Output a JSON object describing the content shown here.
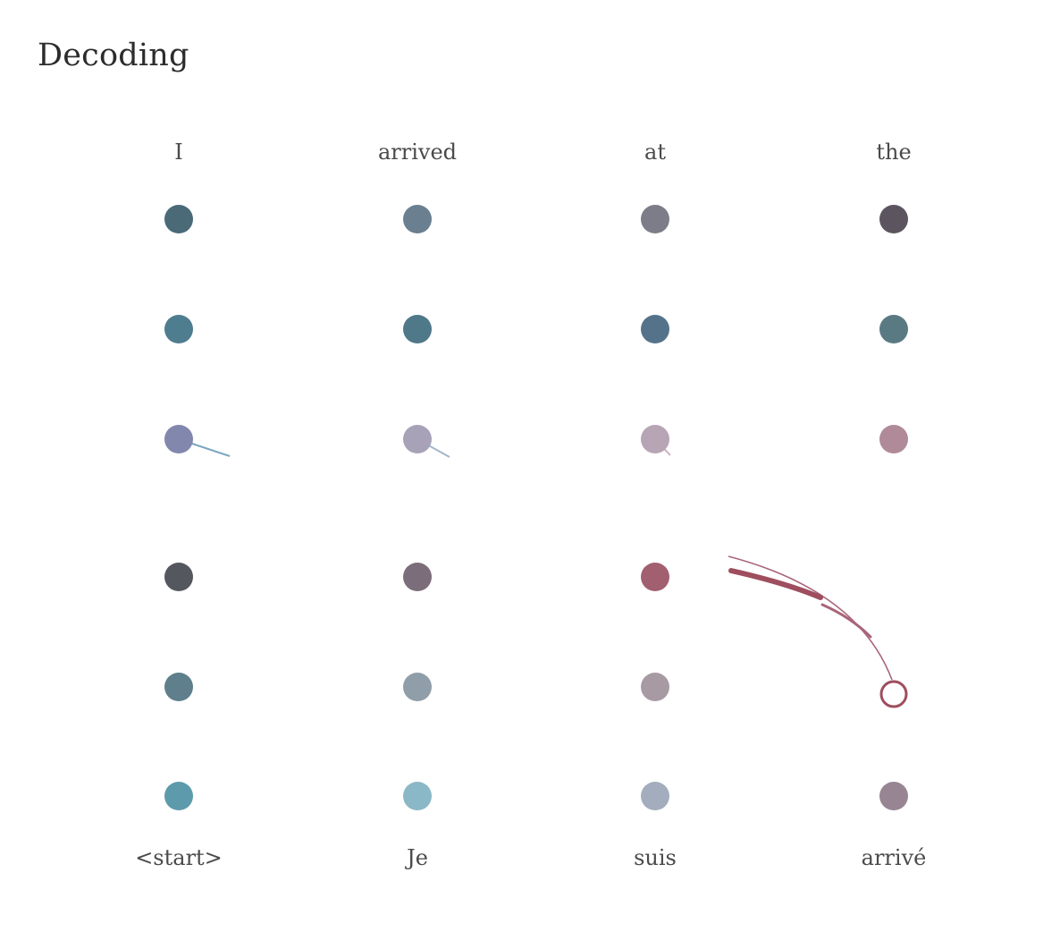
{
  "title": "Decoding",
  "top_words": [
    "I",
    "arrived",
    "at",
    "the"
  ],
  "bottom_words": [
    "<start>",
    "Je",
    "suis",
    "arrivé"
  ],
  "node_colors": [
    [
      "#4a6a78",
      "#6a7f90",
      "#7c7d88",
      "#5c5560"
    ],
    [
      "#4f7d90",
      "#4f7889",
      "#54738a",
      "#5a7a83"
    ],
    [
      "#8287ad",
      "#a7a2b8",
      "#b7a4b4",
      "#b08a98"
    ],
    [
      "#55575f",
      "#7c6d7a",
      "#a25f70",
      null
    ],
    [
      "#5e7f8b",
      "#8f9ea8",
      "#a79aa3",
      null
    ],
    [
      "#5d9aac",
      "#8ab8c6",
      "#a4adbd",
      "#978593"
    ]
  ],
  "active_node": {
    "row": 4,
    "col": 3,
    "stroke": "#9e4e5e"
  },
  "accent_color": "#9e4e5e",
  "link_color": "#7aa6c0"
}
